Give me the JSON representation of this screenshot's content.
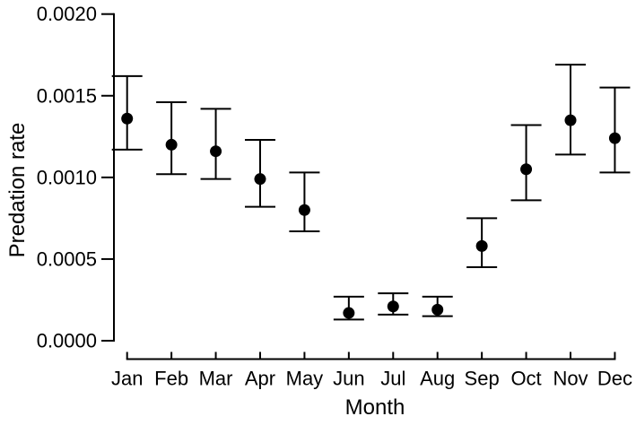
{
  "chart_data": {
    "type": "scatter",
    "subtype": "points-with-error-bars",
    "title": "",
    "xlabel": "Month",
    "ylabel": "Predation rate",
    "categories": [
      "Jan",
      "Feb",
      "Mar",
      "Apr",
      "May",
      "Jun",
      "Jul",
      "Aug",
      "Sep",
      "Oct",
      "Nov",
      "Dec"
    ],
    "values": [
      0.00136,
      0.0012,
      0.00116,
      0.00099,
      0.0008,
      0.00017,
      0.00021,
      0.00019,
      0.00058,
      0.00105,
      0.00135,
      0.00124
    ],
    "error_upper": [
      0.00162,
      0.00146,
      0.00142,
      0.00123,
      0.00103,
      0.00027,
      0.00029,
      0.00027,
      0.00075,
      0.00132,
      0.00169,
      0.00155
    ],
    "error_lower": [
      0.00117,
      0.00102,
      0.00099,
      0.00082,
      0.00067,
      0.00013,
      0.00016,
      0.00015,
      0.00045,
      0.00086,
      0.00114,
      0.00103
    ],
    "ylim": [
      0.0,
      0.002
    ],
    "yticks": {
      "values": [
        0.0,
        0.0005,
        0.001,
        0.0015,
        0.002
      ],
      "labels": [
        "0.0000",
        "0.0005",
        "0.0010",
        "0.0015",
        "0.0020"
      ]
    },
    "grid": false,
    "legend": "none",
    "marker": "filled-circle",
    "colors": {
      "foreground": "#000000",
      "background": "#ffffff"
    }
  }
}
